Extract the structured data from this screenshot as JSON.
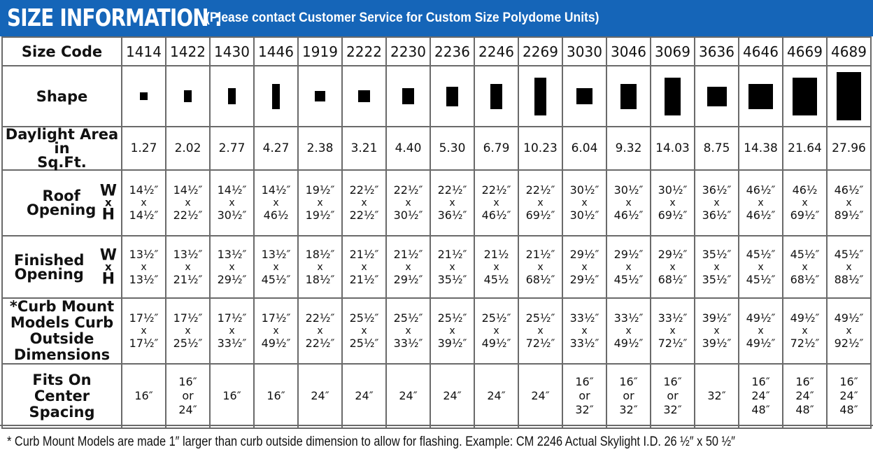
{
  "header": {
    "title": "SIZE INFORMATION :",
    "note": "(Please contact Customer Service for Custom Size Polydome Units)"
  },
  "rows": {
    "size_code_label": "Size Code",
    "shape_label": "Shape",
    "daylight_label_1": "Daylight Area in",
    "daylight_label_2": "Sq.Ft.",
    "roof_label_1": "Roof",
    "roof_label_2": "Opening",
    "finished_label_1": "Finished",
    "finished_label_2": "Opening",
    "curb_label_1": "*Curb Mount",
    "curb_label_2": "Models Curb",
    "curb_label_3": "Outside",
    "curb_label_4": "Dimensions",
    "fits_label_1": "Fits On Center",
    "fits_label_2": "Spacing",
    "w": "W",
    "x": "x",
    "h": "H"
  },
  "columns": [
    {
      "code": "1414",
      "shape": [
        14,
        14
      ],
      "daylight": "1.27",
      "roof": [
        "14½″",
        "x",
        "14½″"
      ],
      "finished": [
        "13½″",
        "x",
        "13½″"
      ],
      "curb": [
        "17½″",
        "x",
        "17½″"
      ],
      "fits": [
        "16″"
      ]
    },
    {
      "code": "1422",
      "shape": [
        14,
        22
      ],
      "daylight": "2.02",
      "roof": [
        "14½″",
        "x",
        "22½″"
      ],
      "finished": [
        "13½″",
        "x",
        "21½″"
      ],
      "curb": [
        "17½″",
        "x",
        "25½″"
      ],
      "fits": [
        "16″",
        "or",
        "24″"
      ]
    },
    {
      "code": "1430",
      "shape": [
        14,
        30
      ],
      "daylight": "2.77",
      "roof": [
        "14½″",
        "x",
        "30½″"
      ],
      "finished": [
        "13½″",
        "x",
        "29½″"
      ],
      "curb": [
        "17½″",
        "x",
        "33½″"
      ],
      "fits": [
        "16″"
      ]
    },
    {
      "code": "1446",
      "shape": [
        14,
        46
      ],
      "daylight": "4.27",
      "roof": [
        "14½″",
        "x",
        "46½"
      ],
      "finished": [
        "13½″",
        "x",
        "45½″"
      ],
      "curb": [
        "17½″",
        "x",
        "49½″"
      ],
      "fits": [
        "16″"
      ]
    },
    {
      "code": "1919",
      "shape": [
        19,
        19
      ],
      "daylight": "2.38",
      "roof": [
        "19½″",
        "x",
        "19½″"
      ],
      "finished": [
        "18½″",
        "x",
        "18½″"
      ],
      "curb": [
        "22½″",
        "x",
        "22½″"
      ],
      "fits": [
        "24″"
      ]
    },
    {
      "code": "2222",
      "shape": [
        22,
        22
      ],
      "daylight": "3.21",
      "roof": [
        "22½″",
        "x",
        "22½″"
      ],
      "finished": [
        "21½″",
        "x",
        "21½″"
      ],
      "curb": [
        "25½″",
        "x",
        "25½″"
      ],
      "fits": [
        "24″"
      ]
    },
    {
      "code": "2230",
      "shape": [
        22,
        30
      ],
      "daylight": "4.40",
      "roof": [
        "22½″",
        "x",
        "30½″"
      ],
      "finished": [
        "21½″",
        "x",
        "29½″"
      ],
      "curb": [
        "25½″",
        "x",
        "33½″"
      ],
      "fits": [
        "24″"
      ]
    },
    {
      "code": "2236",
      "shape": [
        22,
        36
      ],
      "daylight": "5.30",
      "roof": [
        "22½″",
        "x",
        "36½″"
      ],
      "finished": [
        "21½″",
        "x",
        "35½″"
      ],
      "curb": [
        "25½″",
        "x",
        "39½″"
      ],
      "fits": [
        "24″"
      ]
    },
    {
      "code": "2246",
      "shape": [
        22,
        46
      ],
      "daylight": "6.79",
      "roof": [
        "22½″",
        "x",
        "46½″"
      ],
      "finished": [
        "21½",
        "x",
        "45½"
      ],
      "curb": [
        "25½″",
        "x",
        "49½″"
      ],
      "fits": [
        "24″"
      ]
    },
    {
      "code": "2269",
      "shape": [
        22,
        69
      ],
      "daylight": "10.23",
      "roof": [
        "22½″",
        "x",
        "69½″"
      ],
      "finished": [
        "21½″",
        "x",
        "68½″"
      ],
      "curb": [
        "25½″",
        "x",
        "72½″"
      ],
      "fits": [
        "24″"
      ]
    },
    {
      "code": "3030",
      "shape": [
        30,
        30
      ],
      "daylight": "6.04",
      "roof": [
        "30½″",
        "x",
        "30½″"
      ],
      "finished": [
        "29½″",
        "x",
        "29½″"
      ],
      "curb": [
        "33½″",
        "x",
        "33½″"
      ],
      "fits": [
        "16″",
        "or",
        "32″"
      ]
    },
    {
      "code": "3046",
      "shape": [
        30,
        46
      ],
      "daylight": "9.32",
      "roof": [
        "30½″",
        "x",
        "46½″"
      ],
      "finished": [
        "29½″",
        "x",
        "45½″"
      ],
      "curb": [
        "33½″",
        "x",
        "49½″"
      ],
      "fits": [
        "16″",
        "or",
        "32″"
      ]
    },
    {
      "code": "3069",
      "shape": [
        30,
        69
      ],
      "daylight": "14.03",
      "roof": [
        "30½″",
        "x",
        "69½″"
      ],
      "finished": [
        "29½″",
        "x",
        "68½″"
      ],
      "curb": [
        "33½″",
        "x",
        "72½″"
      ],
      "fits": [
        "16″",
        "or",
        "32″"
      ]
    },
    {
      "code": "3636",
      "shape": [
        36,
        36
      ],
      "daylight": "8.75",
      "roof": [
        "36½″",
        "x",
        "36½″"
      ],
      "finished": [
        "35½″",
        "x",
        "35½″"
      ],
      "curb": [
        "39½″",
        "x",
        "39½″"
      ],
      "fits": [
        "32″"
      ]
    },
    {
      "code": "4646",
      "shape": [
        46,
        46
      ],
      "daylight": "14.38",
      "roof": [
        "46½″",
        "x",
        "46½″"
      ],
      "finished": [
        "45½″",
        "x",
        "45½″"
      ],
      "curb": [
        "49½″",
        "x",
        "49½″"
      ],
      "fits": [
        "16″",
        "24″",
        "48″"
      ]
    },
    {
      "code": "4669",
      "shape": [
        46,
        69
      ],
      "daylight": "21.64",
      "roof": [
        "46½",
        "x",
        "69½″"
      ],
      "finished": [
        "45½″",
        "x",
        "68½″"
      ],
      "curb": [
        "49½″",
        "x",
        "72½″"
      ],
      "fits": [
        "16″",
        "24″",
        "48″"
      ]
    },
    {
      "code": "4689",
      "shape": [
        46,
        89
      ],
      "daylight": "27.96",
      "roof": [
        "46½″",
        "x",
        "89½″"
      ],
      "finished": [
        "45½″",
        "x",
        "88½″"
      ],
      "curb": [
        "49½″",
        "x",
        "92½″"
      ],
      "fits": [
        "16″",
        "24″",
        "48″"
      ]
    }
  ],
  "footer": "* Curb Mount Models are made 1″ larger than curb outside dimension to allow for flashing. Example: CM 2246 Actual Skylight I.D. 26 ½″ x 50 ½″"
}
